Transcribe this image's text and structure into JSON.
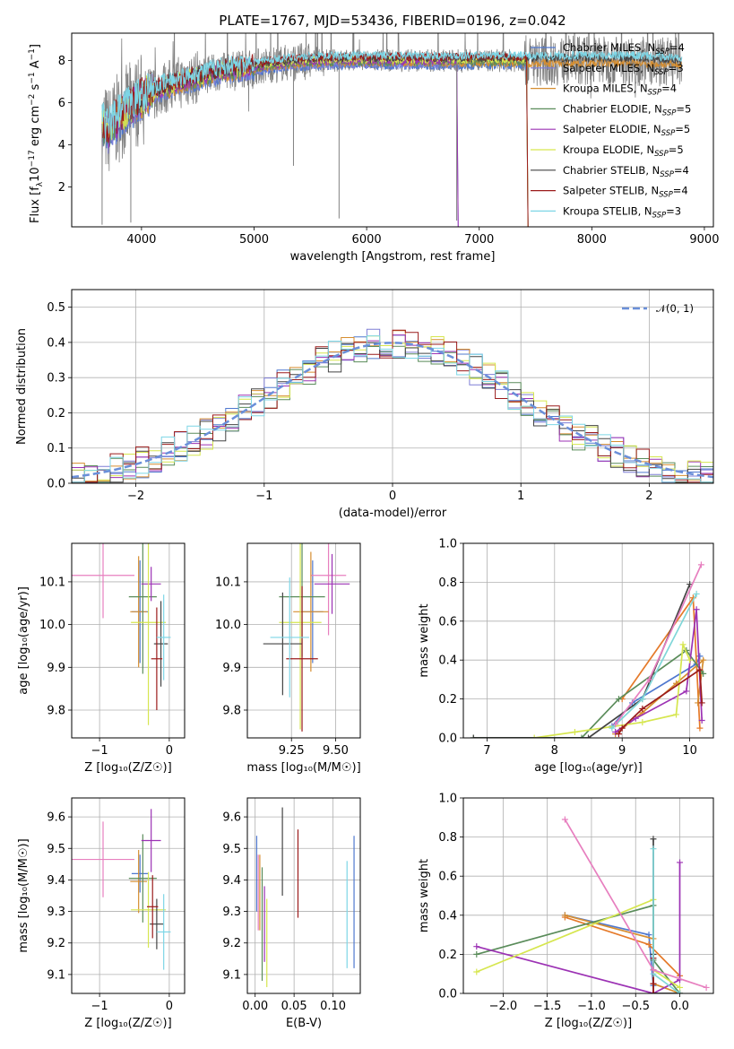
{
  "figure": {
    "title": "PLATE=1767, MJD=53436, FIBERID=0196, z=0.042"
  },
  "colors": [
    "#4f78cf",
    "#7e7ed6",
    "#d68e30",
    "#5a8c5a",
    "#9c32b4",
    "#d6e64f",
    "#444444",
    "#9b1b1b",
    "#7dd6e6"
  ],
  "accent_colors": {
    "data": "#808080",
    "normal": "#6a8fd9",
    "pink": "#e77fbf",
    "orange": "#e57a2a",
    "cyan": "#7fd6d8"
  },
  "chart_data": [
    {
      "id": "spectrum",
      "type": "line",
      "title": "PLATE=1767, MJD=53436, FIBERID=0196, z=0.042",
      "xlabel": "wavelength [Angstrom, rest frame]",
      "ylabel_parts": [
        "Flux [f",
        "λ",
        "10",
        "−17",
        " erg cm",
        "−2",
        " s",
        "−1",
        " A",
        "−1",
        "]"
      ],
      "xlim": [
        3380,
        9080
      ],
      "ylim": [
        0.1,
        9.3
      ],
      "xticks": [
        4000,
        5000,
        6000,
        7000,
        8000,
        9000
      ],
      "yticks": [
        2,
        4,
        6,
        8
      ],
      "legend_position": "upper right",
      "legend": [
        {
          "pre": "Chabrier MILES, N",
          "sub": "SSP",
          "post": "=4"
        },
        {
          "pre": "Salpeter MILES, N",
          "sub": "SSP",
          "post": "=3"
        },
        {
          "pre": "Kroupa MILES, N",
          "sub": "SSP",
          "post": "=4"
        },
        {
          "pre": "Chabrier ELODIE, N",
          "sub": "SSP",
          "post": "=5"
        },
        {
          "pre": "Salpeter ELODIE, N",
          "sub": "SSP",
          "post": "=5"
        },
        {
          "pre": "Kroupa ELODIE, N",
          "sub": "SSP",
          "post": "=5"
        },
        {
          "pre": "Chabrier STELIB, N",
          "sub": "SSP",
          "post": "=4"
        },
        {
          "pre": "Salpeter STELIB, N",
          "sub": "SSP",
          "post": "=4"
        },
        {
          "pre": "Kroupa STELIB, N",
          "sub": "SSP",
          "post": "=3"
        }
      ],
      "continuum": {
        "x": [
          3650,
          3700,
          3800,
          3900,
          4000,
          4100,
          4200,
          4300,
          4500,
          4700,
          5000,
          5300,
          5600,
          6000,
          6500,
          7000,
          7400,
          7700,
          8000,
          8400,
          8800
        ],
        "y": [
          5.0,
          4.6,
          5.3,
          5.8,
          6.2,
          6.5,
          6.7,
          6.9,
          7.2,
          7.5,
          7.7,
          7.9,
          8.0,
          8.0,
          8.0,
          8.0,
          8.0,
          8.0,
          8.0,
          8.0,
          7.9
        ]
      },
      "model_ranges": [
        [
          3650,
          7420
        ],
        [
          3650,
          6800
        ],
        [
          3900,
          8800
        ],
        [
          3650,
          7420
        ],
        [
          3650,
          6800
        ],
        [
          3650,
          7420
        ],
        [
          3900,
          8800
        ],
        [
          3650,
          7420
        ],
        [
          3650,
          8800
        ]
      ]
    },
    {
      "id": "residual-histogram",
      "type": "line",
      "xlabel": "(data-model)/error",
      "ylabel": "Normed distribution",
      "xlim": [
        -2.5,
        2.5
      ],
      "ylim": [
        0,
        0.55
      ],
      "xticks": [
        -2,
        -1,
        0,
        1,
        2
      ],
      "yticks": [
        0.0,
        0.1,
        0.2,
        0.3,
        0.4,
        0.5
      ],
      "grid": true,
      "legend_position": "upper right",
      "normal_label": "𝒩(0, 1)",
      "bin_width": 0.1,
      "bin_start": -2.5
    },
    {
      "id": "age-vs-Z",
      "type": "scatter",
      "xlabel": "Z [log₁₀(Z/Z☉)]",
      "ylabel": "age  [log₁₀(age/yr)]",
      "xlim": [
        -1.4,
        0.22
      ],
      "ylim": [
        9.735,
        10.19
      ],
      "xticks": [
        -1,
        0
      ],
      "yticks": [
        9.8,
        9.9,
        10.0,
        10.1
      ],
      "grid": true,
      "points": [
        {
          "x": -0.42,
          "y": 10.03,
          "xerr": 0.12,
          "yerr": 0.12
        },
        {
          "x": -0.95,
          "y": 10.115,
          "xerr": 0.45,
          "yerr": 0.1
        },
        {
          "x": -0.44,
          "y": 10.03,
          "xerr": 0.12,
          "yerr": 0.13
        },
        {
          "x": -0.38,
          "y": 10.065,
          "xerr": 0.2,
          "yerr": 0.18
        },
        {
          "x": -0.26,
          "y": 10.095,
          "xerr": 0.14,
          "yerr": 0.04
        },
        {
          "x": -0.3,
          "y": 10.005,
          "xerr": 0.25,
          "yerr": 0.24
        },
        {
          "x": -0.12,
          "y": 9.955,
          "xerr": 0.1,
          "yerr": 0.1
        },
        {
          "x": -0.18,
          "y": 9.92,
          "xerr": 0.08,
          "yerr": 0.12
        },
        {
          "x": -0.08,
          "y": 9.97,
          "xerr": 0.1,
          "yerr": 0.1
        }
      ]
    },
    {
      "id": "age-vs-mass",
      "type": "scatter",
      "xlabel": "mass [log₁₀(M/M☉)]",
      "ylabel": "",
      "xlim": [
        9.0,
        9.64
      ],
      "ylim": [
        9.735,
        10.19
      ],
      "xticks": [
        9.25,
        9.5
      ],
      "yticks": [
        9.8,
        9.9,
        10.0,
        10.1
      ],
      "grid": true,
      "points": [
        {
          "x": 9.37,
          "y": 10.03,
          "xerr": 0.06,
          "yerr": 0.12
        },
        {
          "x": 9.46,
          "y": 10.115,
          "xerr": 0.1,
          "yerr": 0.14
        },
        {
          "x": 9.36,
          "y": 10.03,
          "xerr": 0.1,
          "yerr": 0.14
        },
        {
          "x": 9.31,
          "y": 10.065,
          "xerr": 0.13,
          "yerr": 0.14
        },
        {
          "x": 9.48,
          "y": 10.095,
          "xerr": 0.1,
          "yerr": 0.07
        },
        {
          "x": 9.3,
          "y": 10.005,
          "xerr": 0.12,
          "yerr": 0.25
        },
        {
          "x": 9.2,
          "y": 9.955,
          "xerr": 0.11,
          "yerr": 0.12
        },
        {
          "x": 9.31,
          "y": 9.92,
          "xerr": 0.09,
          "yerr": 0.17
        },
        {
          "x": 9.24,
          "y": 9.97,
          "xerr": 0.11,
          "yerr": 0.14
        }
      ]
    },
    {
      "id": "massweight-vs-age",
      "type": "line",
      "xlabel": "age  [log₁₀(age/yr)]",
      "ylabel": "mass weight",
      "xlim": [
        6.65,
        10.35
      ],
      "ylim": [
        0,
        1.0
      ],
      "xticks": [
        7,
        8,
        9,
        10
      ],
      "yticks": [
        0.0,
        0.2,
        0.4,
        0.6,
        0.8,
        1.0
      ],
      "grid": true,
      "series": [
        {
          "x": [
            8.85,
            9.15,
            10.1,
            10.15
          ],
          "y": [
            0.06,
            0.18,
            0.38,
            0.42
          ]
        },
        {
          "x": [
            9.0,
            10.05,
            10.15
          ],
          "y": [
            0.2,
            0.72,
            0.05
          ]
        },
        {
          "x": [
            8.9,
            9.3,
            9.8,
            10.2,
            10.12
          ],
          "y": [
            0.02,
            0.13,
            0.28,
            0.4,
            0.18
          ]
        },
        {
          "x": [
            6.8,
            8.4,
            8.95,
            9.95,
            10.2
          ],
          "y": [
            0.0,
            0.0,
            0.2,
            0.45,
            0.33
          ]
        },
        {
          "x": [
            8.9,
            9.2,
            9.95,
            10.1,
            10.18
          ],
          "y": [
            0.03,
            0.1,
            0.24,
            0.66,
            0.09
          ]
        },
        {
          "x": [
            7.7,
            8.3,
            9.3,
            9.8,
            9.9,
            10.0
          ],
          "y": [
            0.0,
            0.03,
            0.08,
            0.12,
            0.48,
            0.4
          ]
        },
        {
          "x": [
            6.8,
            8.5,
            9.3,
            10.0
          ],
          "y": [
            0.0,
            0.0,
            0.2,
            0.79
          ]
        },
        {
          "x": [
            8.95,
            9.0,
            9.3,
            10.15,
            10.18
          ],
          "y": [
            0.02,
            0.05,
            0.15,
            0.35,
            0.18
          ]
        },
        {
          "x": [
            8.85,
            9.3,
            10.1
          ],
          "y": [
            0.05,
            0.2,
            0.74
          ]
        },
        {
          "x": [
            8.9,
            9.4,
            10.17
          ],
          "y": [
            0.07,
            0.3,
            0.89
          ]
        }
      ]
    },
    {
      "id": "mass-vs-Z",
      "type": "scatter",
      "xlabel": "Z [log₁₀(Z/Z☉)]",
      "ylabel": "mass [log₁₀(M/M☉)]",
      "xlim": [
        -1.4,
        0.22
      ],
      "ylim": [
        9.04,
        9.66
      ],
      "xticks": [
        -1,
        0
      ],
      "yticks": [
        9.1,
        9.2,
        9.3,
        9.4,
        9.5,
        9.6
      ],
      "grid": true,
      "points": [
        {
          "x": -0.42,
          "y": 9.42,
          "xerr": 0.12,
          "yerr": 0.06
        },
        {
          "x": -0.95,
          "y": 9.465,
          "xerr": 0.45,
          "yerr": 0.12
        },
        {
          "x": -0.44,
          "y": 9.395,
          "xerr": 0.12,
          "yerr": 0.1
        },
        {
          "x": -0.38,
          "y": 9.405,
          "xerr": 0.2,
          "yerr": 0.14
        },
        {
          "x": -0.26,
          "y": 9.525,
          "xerr": 0.14,
          "yerr": 0.1
        },
        {
          "x": -0.3,
          "y": 9.305,
          "xerr": 0.25,
          "yerr": 0.12
        },
        {
          "x": -0.18,
          "y": 9.26,
          "xerr": 0.1,
          "yerr": 0.08
        },
        {
          "x": -0.24,
          "y": 9.315,
          "xerr": 0.08,
          "yerr": 0.1
        },
        {
          "x": -0.08,
          "y": 9.235,
          "xerr": 0.1,
          "yerr": 0.12
        }
      ]
    },
    {
      "id": "mass-vs-EBV",
      "type": "scatter",
      "xlabel": "E(B-V)",
      "ylabel": "",
      "xlim": [
        -0.01,
        0.135
      ],
      "ylim": [
        9.04,
        9.66
      ],
      "xticks": [
        0.0,
        0.05,
        0.1
      ],
      "yticks": [
        9.1,
        9.2,
        9.3,
        9.4,
        9.5,
        9.6
      ],
      "grid": true,
      "points": [
        {
          "x": 0.002,
          "y": 9.42,
          "xerr": 0.0,
          "yerr": 0.12
        },
        {
          "x": 0.004,
          "y": 9.36,
          "xerr": 0.0,
          "yerr": 0.12
        },
        {
          "x": 0.006,
          "y": 9.36,
          "xerr": 0.0,
          "yerr": 0.12
        },
        {
          "x": 0.009,
          "y": 9.26,
          "xerr": 0.0,
          "yerr": 0.18
        },
        {
          "x": 0.012,
          "y": 9.26,
          "xerr": 0.0,
          "yerr": 0.12
        },
        {
          "x": 0.015,
          "y": 9.2,
          "xerr": 0.0,
          "yerr": 0.14
        },
        {
          "x": 0.035,
          "y": 9.49,
          "xerr": 0.0,
          "yerr": 0.14
        },
        {
          "x": 0.055,
          "y": 9.42,
          "xerr": 0.0,
          "yerr": 0.14
        },
        {
          "x": 0.118,
          "y": 9.29,
          "xerr": 0.0,
          "yerr": 0.17
        },
        {
          "x": 0.127,
          "y": 9.33,
          "xerr": 0.0,
          "yerr": 0.21
        }
      ]
    },
    {
      "id": "massweight-vs-Z",
      "type": "line",
      "xlabel": "Z [log₁₀(Z/Z☉)]",
      "ylabel": "mass weight",
      "xlim": [
        -2.45,
        0.38
      ],
      "ylim": [
        0,
        1.0
      ],
      "xticks": [
        -2.0,
        -1.5,
        -1.0,
        -0.5,
        0.0
      ],
      "grid": true,
      "yticks": [
        0.0,
        0.2,
        0.4,
        0.6,
        0.8,
        1.0
      ],
      "series": [
        {
          "x": [
            -1.3,
            -0.35,
            -0.3
          ],
          "y": [
            0.4,
            0.3,
            0.04
          ]
        },
        {
          "x": [
            -1.3,
            -0.35,
            0.0
          ],
          "y": [
            0.39,
            0.25,
            0.09
          ]
        },
        {
          "x": [
            -1.3,
            -0.3,
            -0.3,
            0.0
          ],
          "y": [
            0.4,
            0.28,
            0.05,
            0.0
          ]
        },
        {
          "x": [
            -2.3,
            -0.3,
            -0.3,
            0.0
          ],
          "y": [
            0.2,
            0.45,
            0.17,
            0.0
          ]
        },
        {
          "x": [
            -2.3,
            -0.3,
            0.0,
            0.0
          ],
          "y": [
            0.24,
            0.0,
            0.07,
            0.67
          ]
        },
        {
          "x": [
            -2.3,
            -0.3,
            -0.3,
            0.0
          ],
          "y": [
            0.11,
            0.48,
            0.12,
            0.03
          ]
        },
        {
          "x": [
            -0.3,
            -0.3,
            -0.3,
            0.0
          ],
          "y": [
            0.79,
            0.2,
            0.0,
            0.0
          ]
        },
        {
          "x": [
            -0.3,
            -0.3,
            -0.3,
            -0.3
          ],
          "y": [
            0.18,
            0.12,
            0.05,
            0.0
          ]
        },
        {
          "x": [
            -0.3,
            -0.3,
            0.0
          ],
          "y": [
            0.74,
            0.1,
            0.0
          ]
        },
        {
          "x": [
            -1.3,
            -0.3,
            0.3
          ],
          "y": [
            0.89,
            0.12,
            0.03
          ]
        }
      ]
    }
  ]
}
